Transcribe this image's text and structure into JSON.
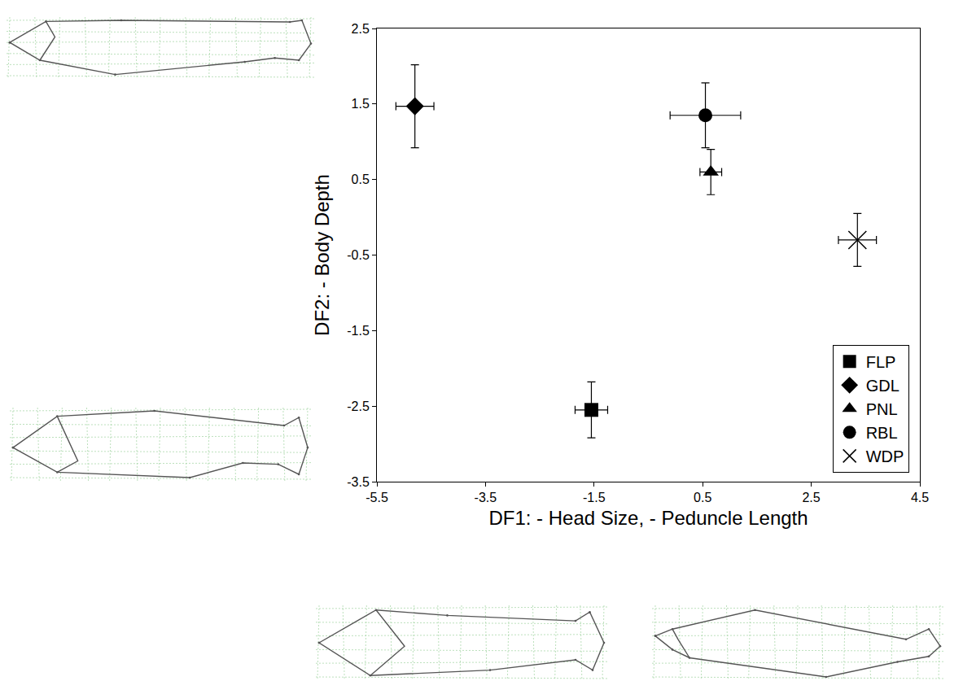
{
  "chart_data": {
    "type": "scatter",
    "x_label": "DF1: - Head Size, - Peduncle Length",
    "y_label": "DF2: - Body Depth",
    "xlim": [
      -5.5,
      4.5
    ],
    "xticks": [
      -5.5,
      -3.5,
      -1.5,
      0.5,
      2.5,
      4.5
    ],
    "ylim": [
      -3.5,
      2.5
    ],
    "yticks": [
      -3.5,
      -2.5,
      -1.5,
      -0.5,
      0.5,
      1.5,
      2.5
    ],
    "grid": false,
    "legend": "bottom right",
    "series": [
      {
        "name": "FLP",
        "marker": "square",
        "color": "#000000",
        "x": [
          -1.55
        ],
        "y": [
          -2.55
        ],
        "x_error": [
          0.3
        ],
        "y_error": [
          0.37
        ]
      },
      {
        "name": "GDL",
        "marker": "diamond",
        "color": "#000000",
        "x": [
          -4.8
        ],
        "y": [
          1.47
        ],
        "x_error": [
          0.35
        ],
        "y_error": [
          0.55
        ]
      },
      {
        "name": "PNL",
        "marker": "triangle-up",
        "color": "#000000",
        "x": [
          0.65
        ],
        "y": [
          0.6
        ],
        "x_error": [
          0.2
        ],
        "y_error": [
          0.3
        ]
      },
      {
        "name": "RBL",
        "marker": "circle",
        "color": "#000000",
        "x": [
          0.55
        ],
        "y": [
          1.35
        ],
        "x_error": [
          0.65
        ],
        "y_error": [
          0.43
        ]
      },
      {
        "name": "WDP",
        "marker": "x",
        "color": "#000000",
        "x": [
          3.35
        ],
        "y": [
          -0.3
        ],
        "x_error": [
          0.35
        ],
        "y_error": [
          0.35
        ]
      }
    ]
  }
}
